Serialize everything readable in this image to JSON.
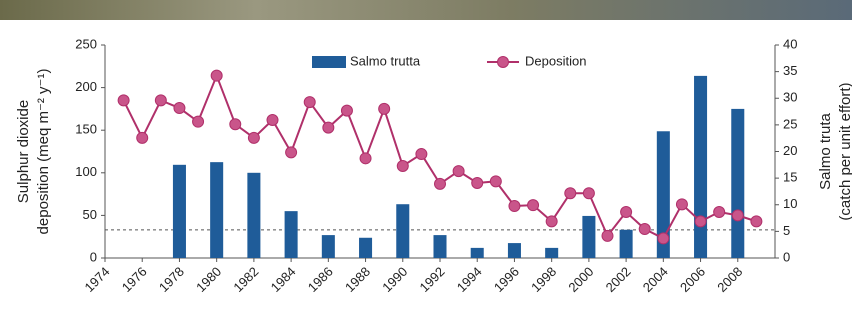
{
  "chart_data": {
    "type": "combo",
    "ylabel": [
      "Sulphur dioxide",
      "deposition (meq m⁻² y⁻¹)"
    ],
    "y2label": [
      "Salmo truta",
      "(catch per unit effort)"
    ],
    "xlim": [
      1974,
      2010
    ],
    "xticks": [
      1974,
      1976,
      1978,
      1980,
      1982,
      1984,
      1986,
      1988,
      1990,
      1992,
      1994,
      1996,
      1998,
      2000,
      2002,
      2004,
      2006,
      2008
    ],
    "ylim": [
      0,
      250
    ],
    "yticks": [
      0,
      50,
      100,
      150,
      200,
      250
    ],
    "y2lim": [
      0,
      40
    ],
    "y2ticks": [
      0,
      5,
      10,
      15,
      20,
      25,
      30,
      35,
      40
    ],
    "threshold": 33,
    "series": [
      {
        "name": "Salmo trutta",
        "type": "bar",
        "axis": "y2",
        "color": "#1f5c99",
        "x": [
          1978,
          1980,
          1982,
          1984,
          1986,
          1988,
          1990,
          1992,
          1994,
          1996,
          1998,
          2000,
          2002,
          2004,
          2006,
          2008
        ],
        "values": [
          17.5,
          18,
          16,
          8.8,
          4.3,
          3.8,
          10.1,
          4.3,
          1.9,
          2.8,
          1.9,
          7.9,
          5.3,
          23.8,
          34.2,
          28
        ]
      },
      {
        "name": "Deposition",
        "type": "line",
        "color": "#b0306a",
        "x": [
          1975,
          1976,
          1977,
          1978,
          1979,
          1980,
          1981,
          1982,
          1983,
          1984,
          1985,
          1986,
          1987,
          1988,
          1989,
          1990,
          1991,
          1992,
          1993,
          1994,
          1995,
          1996,
          1997,
          1998,
          1999,
          2000,
          2001,
          2002,
          2003,
          2004,
          2005,
          2006,
          2007,
          2008,
          2009
        ],
        "values": [
          185,
          141,
          185,
          176,
          160,
          214,
          157,
          141,
          162,
          124,
          183,
          153,
          173,
          117,
          175,
          108,
          122,
          87,
          102,
          88,
          90,
          61,
          62,
          43,
          76,
          76,
          26,
          54,
          34,
          23,
          63,
          43,
          54,
          50,
          43
        ]
      }
    ]
  }
}
